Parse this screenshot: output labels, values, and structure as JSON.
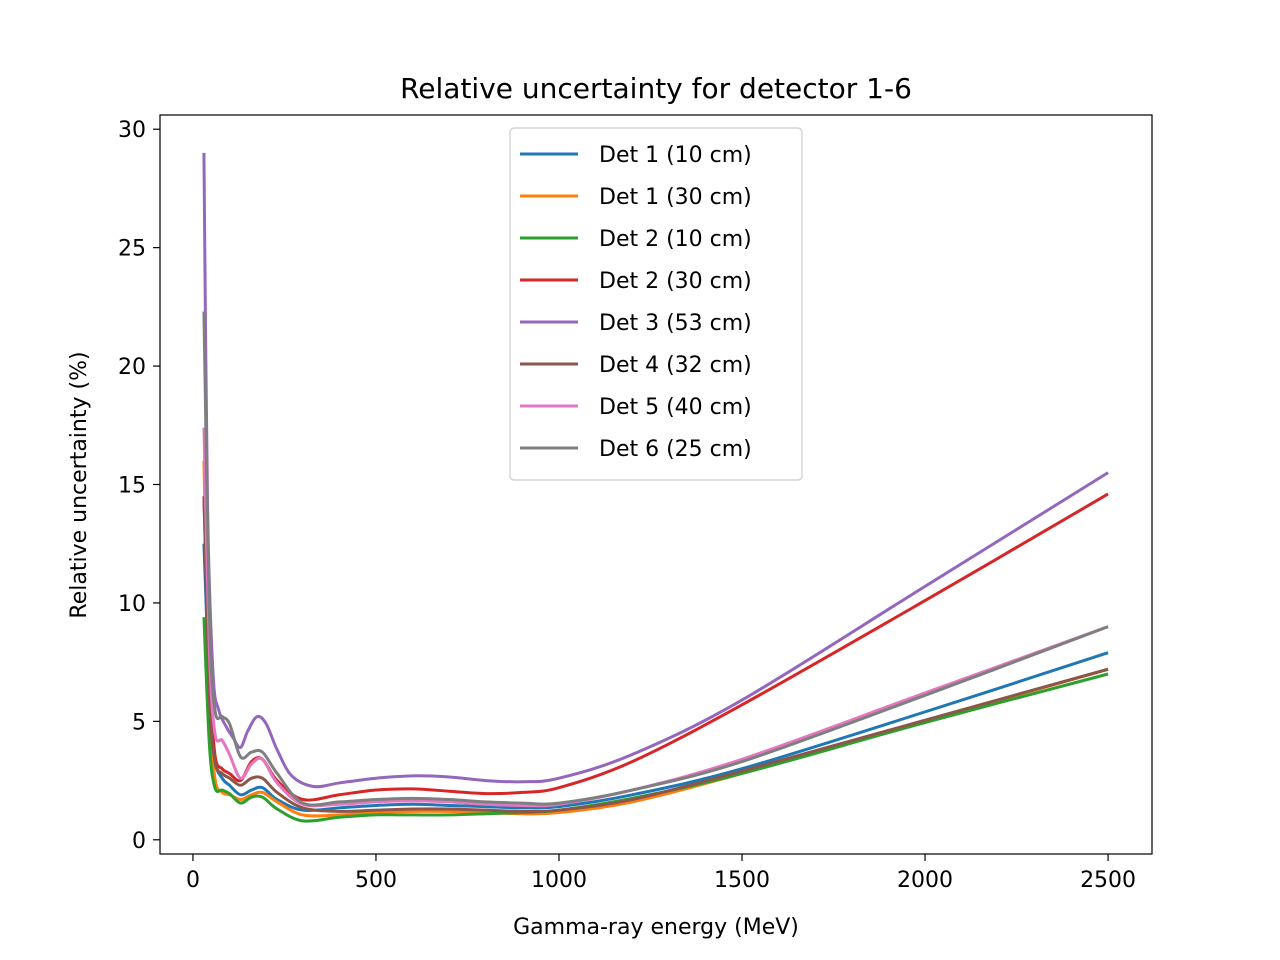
{
  "chart_data": {
    "type": "line",
    "title": "Relative uncertainty for detector 1-6",
    "xlabel": "Gamma-ray energy (MeV)",
    "ylabel": "Relative uncertainty (%)",
    "xlim": [
      -90,
      2620
    ],
    "ylim": [
      -0.6,
      30.6
    ],
    "xticks": [
      0,
      500,
      1000,
      1500,
      2000,
      2500
    ],
    "yticks": [
      0,
      5,
      10,
      15,
      20,
      25,
      30
    ],
    "legend": "upper center",
    "grid": false,
    "series": [
      {
        "name": "Det 1 (10 cm)",
        "color": "#1f77b4",
        "x": [
          30,
          45,
          60,
          80,
          100,
          130,
          160,
          190,
          230,
          300,
          400,
          500,
          600,
          700,
          800,
          900,
          1000,
          1200,
          1500,
          2000,
          2500
        ],
        "y": [
          12.5,
          6.5,
          3.4,
          2.6,
          2.3,
          1.9,
          2.1,
          2.2,
          1.7,
          1.25,
          1.35,
          1.45,
          1.5,
          1.45,
          1.4,
          1.35,
          1.4,
          1.9,
          3.0,
          5.4,
          7.9
        ]
      },
      {
        "name": "Det 1 (30 cm)",
        "color": "#ff7f0e",
        "x": [
          30,
          45,
          60,
          80,
          100,
          130,
          160,
          190,
          230,
          300,
          400,
          500,
          600,
          700,
          800,
          900,
          1000,
          1200,
          1500,
          2000,
          2500
        ],
        "y": [
          16.0,
          5.8,
          2.6,
          2.0,
          1.9,
          1.7,
          1.9,
          2.0,
          1.6,
          1.05,
          1.05,
          1.15,
          1.2,
          1.2,
          1.15,
          1.1,
          1.15,
          1.6,
          2.8,
          5.0,
          7.2
        ]
      },
      {
        "name": "Det 2 (10 cm)",
        "color": "#2ca02c",
        "x": [
          30,
          45,
          60,
          80,
          100,
          130,
          160,
          190,
          230,
          300,
          400,
          500,
          600,
          700,
          800,
          900,
          1000,
          1200,
          1500,
          2000,
          2500
        ],
        "y": [
          9.4,
          4.0,
          2.2,
          2.1,
          1.95,
          1.55,
          1.8,
          1.8,
          1.3,
          0.8,
          0.95,
          1.05,
          1.05,
          1.05,
          1.1,
          1.15,
          1.25,
          1.75,
          2.8,
          4.95,
          7.0
        ]
      },
      {
        "name": "Det 2 (30 cm)",
        "color": "#d62728",
        "x": [
          30,
          45,
          60,
          80,
          100,
          130,
          160,
          190,
          230,
          300,
          400,
          500,
          600,
          700,
          800,
          900,
          1000,
          1200,
          1500,
          2000,
          2500
        ],
        "y": [
          14.5,
          7.2,
          3.6,
          3.0,
          2.8,
          2.5,
          3.3,
          3.4,
          2.5,
          1.7,
          1.9,
          2.1,
          2.15,
          2.05,
          1.95,
          2.0,
          2.2,
          3.3,
          5.7,
          10.1,
          14.6
        ]
      },
      {
        "name": "Det 3 (53 cm)",
        "color": "#9467bd",
        "x": [
          30,
          40,
          55,
          70,
          90,
          110,
          130,
          150,
          175,
          200,
          230,
          270,
          330,
          400,
          500,
          600,
          700,
          800,
          900,
          1000,
          1200,
          1500,
          2000,
          2500
        ],
        "y": [
          29.0,
          14.0,
          7.0,
          5.5,
          4.8,
          4.3,
          3.9,
          4.6,
          5.2,
          4.9,
          3.8,
          2.7,
          2.25,
          2.4,
          2.6,
          2.7,
          2.65,
          2.5,
          2.45,
          2.6,
          3.6,
          5.9,
          10.7,
          15.5
        ]
      },
      {
        "name": "Det 4 (32 cm)",
        "color": "#8c564b",
        "x": [
          30,
          45,
          60,
          80,
          100,
          130,
          160,
          190,
          230,
          300,
          400,
          500,
          600,
          700,
          800,
          900,
          1000,
          1200,
          1500,
          2000,
          2500
        ],
        "y": [
          14.5,
          6.0,
          3.3,
          2.8,
          2.6,
          2.3,
          2.6,
          2.6,
          2.0,
          1.35,
          1.2,
          1.25,
          1.3,
          1.3,
          1.25,
          1.2,
          1.25,
          1.7,
          2.9,
          5.05,
          7.2
        ]
      },
      {
        "name": "Det 5 (40 cm)",
        "color": "#e377c2",
        "x": [
          30,
          45,
          60,
          80,
          100,
          130,
          160,
          190,
          230,
          300,
          400,
          500,
          600,
          700,
          800,
          900,
          1000,
          1200,
          1500,
          2000,
          2500
        ],
        "y": [
          17.4,
          8.0,
          4.5,
          4.2,
          3.6,
          2.6,
          3.2,
          3.4,
          2.4,
          1.5,
          1.5,
          1.6,
          1.65,
          1.6,
          1.5,
          1.45,
          1.5,
          2.1,
          3.4,
          6.2,
          9.0
        ]
      },
      {
        "name": "Det 6 (25 cm)",
        "color": "#7f7f7f",
        "x": [
          30,
          45,
          60,
          80,
          100,
          130,
          160,
          190,
          230,
          300,
          400,
          500,
          600,
          700,
          800,
          900,
          1000,
          1200,
          1500,
          2000,
          2500
        ],
        "y": [
          22.3,
          9.5,
          5.5,
          5.2,
          4.9,
          3.5,
          3.7,
          3.7,
          2.8,
          1.55,
          1.6,
          1.7,
          1.75,
          1.7,
          1.6,
          1.55,
          1.55,
          2.1,
          3.3,
          6.1,
          9.0
        ]
      }
    ]
  }
}
